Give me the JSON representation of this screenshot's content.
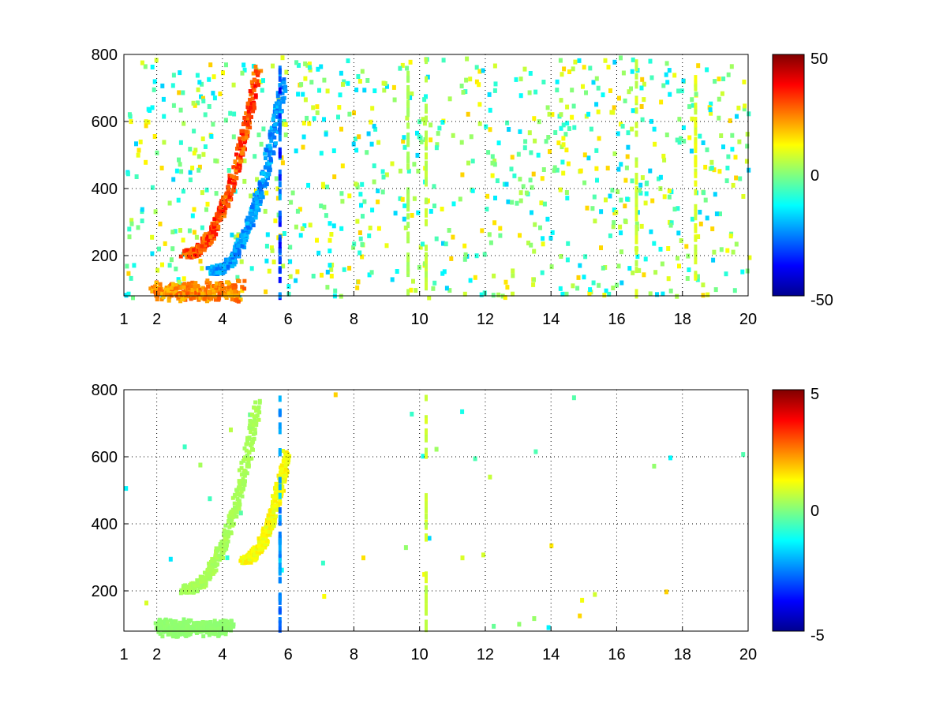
{
  "chart_data": [
    {
      "type": "heatmap",
      "title": "",
      "xlabel": "",
      "ylabel": "",
      "xlim": [
        1,
        20
      ],
      "ylim": [
        80,
        800
      ],
      "xticks": [
        1,
        2,
        4,
        6,
        8,
        10,
        12,
        14,
        16,
        18,
        20
      ],
      "yticks": [
        200,
        400,
        600,
        800
      ],
      "grid": true,
      "colormap": "jet",
      "colorbar": {
        "range": [
          -50,
          50
        ],
        "ticks": [
          50,
          0,
          -50
        ]
      },
      "blank_color": "#ffffff",
      "bands": [
        {
          "x0": 2.8,
          "x1": 5.0,
          "y0": 210,
          "y1": 760,
          "value": 38,
          "curve": "rising"
        },
        {
          "x0": 3.6,
          "x1": 5.8,
          "y0": 160,
          "y1": 720,
          "value": -28,
          "curve": "rising"
        },
        {
          "x0": 1.8,
          "x1": 4.5,
          "y0": 80,
          "y1": 120,
          "value": 30,
          "curve": "flat"
        }
      ],
      "columns": [
        {
          "x": 5.75,
          "value": -40
        },
        {
          "x": 9.65,
          "value": 5
        },
        {
          "x": 10.2,
          "value": 8
        },
        {
          "x": 16.6,
          "value": 10
        },
        {
          "x": 18.4,
          "value": 12
        }
      ]
    },
    {
      "type": "heatmap",
      "title": "",
      "xlabel": "",
      "ylabel": "",
      "xlim": [
        1,
        20
      ],
      "ylim": [
        80,
        800
      ],
      "xticks": [
        1,
        2,
        4,
        6,
        8,
        10,
        12,
        14,
        16,
        18,
        20
      ],
      "yticks": [
        200,
        400,
        600,
        800
      ],
      "grid": true,
      "colormap": "jet",
      "colorbar": {
        "range": [
          -5,
          5
        ],
        "ticks": [
          5,
          0,
          -5
        ]
      },
      "blank_color": "#ffffff",
      "bands": [
        {
          "x0": 2.8,
          "x1": 5.0,
          "y0": 210,
          "y1": 760,
          "value": 0.5,
          "curve": "rising"
        },
        {
          "x0": 4.6,
          "x1": 5.9,
          "y0": 300,
          "y1": 620,
          "value": 1.5,
          "curve": "rising"
        },
        {
          "x0": 2.0,
          "x1": 4.2,
          "y0": 80,
          "y1": 110,
          "value": 0.2,
          "curve": "flat"
        }
      ],
      "columns": [
        {
          "x": 5.75,
          "value": -3
        },
        {
          "x": 10.2,
          "value": 1
        }
      ]
    }
  ]
}
